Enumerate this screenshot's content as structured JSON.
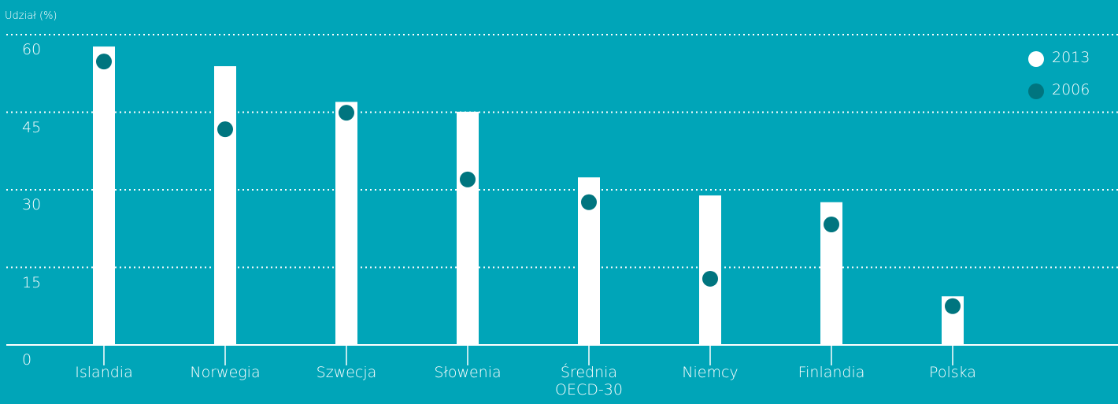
{
  "chart_data": {
    "type": "bar",
    "y_axis_label": "Udział (%)",
    "categories": [
      "Islandia",
      "Norwegia",
      "Szwecja",
      "Słowenia",
      "Średnia OECD-30",
      "Niemcy",
      "Finlandia",
      "Polska"
    ],
    "series": [
      {
        "name": "2013",
        "color": "#ffffff",
        "mark": "bar",
        "values": [
          57.7,
          53.9,
          47.0,
          45.1,
          32.4,
          28.9,
          27.6,
          9.4
        ]
      },
      {
        "name": "2006",
        "color": "#00757f",
        "mark": "dot",
        "values": [
          54.8,
          41.7,
          44.9,
          32.0,
          27.6,
          12.8,
          23.3,
          7.5
        ]
      }
    ],
    "ylim": [
      0,
      60
    ],
    "yticks": [
      0,
      15,
      30,
      45,
      60
    ],
    "grid": true,
    "legend": "top-right"
  }
}
